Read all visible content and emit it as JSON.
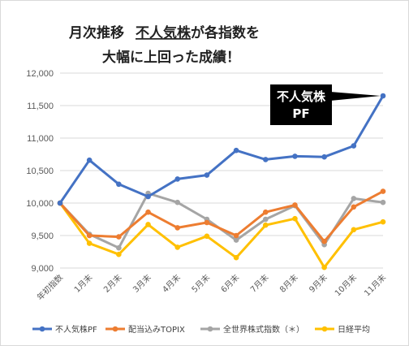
{
  "title": {
    "line1_prefix": "月次推移",
    "line1_highlight": "不人気株",
    "line1_suffix": "が各指数を",
    "line2": "大幅に上回った成績！"
  },
  "callout": {
    "line1": "不人気株",
    "line2": "PF"
  },
  "chart_data": {
    "type": "line",
    "categories": [
      "年初指数",
      "1月末",
      "2月末",
      "3月末",
      "4月末",
      "5月末",
      "6月末",
      "7月末",
      "8月末",
      "9月末",
      "10月末",
      "11月末"
    ],
    "ylim": [
      9000,
      12000
    ],
    "yticks": [
      9000,
      9500,
      10000,
      10500,
      11000,
      11500,
      12000
    ],
    "ytick_labels": [
      "9,000",
      "9,500",
      "10,000",
      "10,500",
      "11,000",
      "11,500",
      "12,000"
    ],
    "grid": true,
    "legend_position": "bottom",
    "series": [
      {
        "name": "不人気株PF",
        "color": "#4472C4",
        "values": [
          10000,
          10660,
          10290,
          10100,
          10370,
          10430,
          10810,
          10670,
          10720,
          10710,
          10880,
          11650
        ]
      },
      {
        "name": "配当込みTOPIX",
        "color": "#ED7D31",
        "values": [
          10000,
          9500,
          9480,
          9860,
          9620,
          9700,
          9500,
          9860,
          9970,
          9410,
          9940,
          10180
        ]
      },
      {
        "name": "全世界株式指数（＊）",
        "color": "#A5A5A5",
        "values": [
          10000,
          9520,
          9310,
          10150,
          10010,
          9750,
          9430,
          9750,
          9960,
          9360,
          10070,
          10010
        ]
      },
      {
        "name": "日経平均",
        "color": "#FFC000",
        "values": [
          10000,
          9380,
          9210,
          9670,
          9320,
          9490,
          9160,
          9660,
          9760,
          9010,
          9590,
          9710
        ]
      }
    ]
  }
}
